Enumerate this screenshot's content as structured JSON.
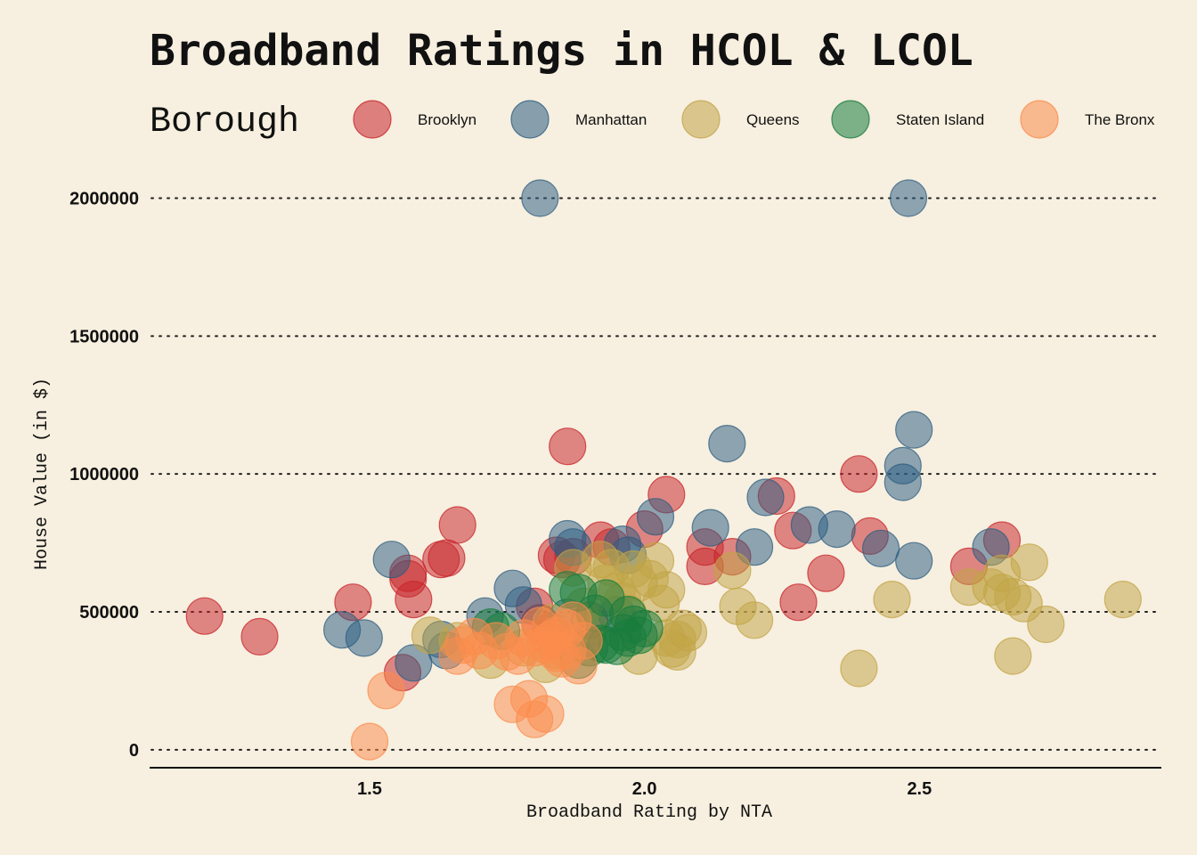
{
  "chart_data": {
    "type": "scatter",
    "title": "Broadband Ratings in HCOL & LCOL",
    "xlabel": "Broadband Rating by NTA",
    "ylabel": "House Value (in $)",
    "legend_title": "Borough",
    "legend_position": "top",
    "grid": "horizontal dotted",
    "xlim": [
      1.1,
      2.94
    ],
    "ylim": [
      -65000,
      2050000
    ],
    "x_ticks": [
      1.5,
      2.0,
      2.5
    ],
    "x_tick_labels": [
      "1.5",
      "2.0",
      "2.5"
    ],
    "y_ticks": [
      0,
      500000,
      1000000,
      1500000,
      2000000
    ],
    "y_tick_labels": [
      "0",
      "500000",
      "1000000",
      "1500000",
      "2000000"
    ],
    "series": [
      {
        "name": "Brooklyn",
        "color": "#c8242b",
        "points": [
          [
            1.2,
            485000
          ],
          [
            1.3,
            410000
          ],
          [
            1.47,
            535000
          ],
          [
            1.56,
            280000
          ],
          [
            1.57,
            640000
          ],
          [
            1.57,
            620000
          ],
          [
            1.58,
            545000
          ],
          [
            1.63,
            690000
          ],
          [
            1.64,
            695000
          ],
          [
            1.66,
            815000
          ],
          [
            1.8,
            520000
          ],
          [
            1.81,
            460000
          ],
          [
            1.84,
            705000
          ],
          [
            1.85,
            690000
          ],
          [
            1.86,
            1100000
          ],
          [
            1.87,
            700000
          ],
          [
            1.92,
            760000
          ],
          [
            1.94,
            735000
          ],
          [
            2.0,
            800000
          ],
          [
            2.04,
            925000
          ],
          [
            2.11,
            735000
          ],
          [
            2.11,
            665000
          ],
          [
            2.16,
            700000
          ],
          [
            2.24,
            920000
          ],
          [
            2.27,
            795000
          ],
          [
            2.28,
            535000
          ],
          [
            2.33,
            640000
          ],
          [
            2.39,
            1000000
          ],
          [
            2.41,
            775000
          ],
          [
            2.59,
            665000
          ],
          [
            2.65,
            760000
          ],
          [
            1.83,
            430000
          ],
          [
            1.9,
            470000
          ]
        ]
      },
      {
        "name": "Manhattan",
        "color": "#2c5d82",
        "points": [
          [
            1.45,
            435000
          ],
          [
            1.49,
            405000
          ],
          [
            1.54,
            690000
          ],
          [
            1.58,
            315000
          ],
          [
            1.63,
            400000
          ],
          [
            1.64,
            360000
          ],
          [
            1.71,
            485000
          ],
          [
            1.76,
            585000
          ],
          [
            1.78,
            525000
          ],
          [
            1.81,
            2000000
          ],
          [
            1.86,
            765000
          ],
          [
            1.87,
            735000
          ],
          [
            1.96,
            745000
          ],
          [
            1.97,
            705000
          ],
          [
            2.02,
            845000
          ],
          [
            2.12,
            805000
          ],
          [
            2.15,
            1110000
          ],
          [
            2.2,
            735000
          ],
          [
            2.22,
            915000
          ],
          [
            2.3,
            815000
          ],
          [
            2.35,
            800000
          ],
          [
            2.43,
            730000
          ],
          [
            2.47,
            1030000
          ],
          [
            2.47,
            970000
          ],
          [
            2.48,
            2000000
          ],
          [
            2.49,
            1160000
          ],
          [
            2.49,
            685000
          ],
          [
            2.63,
            735000
          ],
          [
            1.86,
            480000
          ],
          [
            1.95,
            490000
          ]
        ]
      },
      {
        "name": "Queens",
        "color": "#c2a447",
        "points": [
          [
            1.61,
            415000
          ],
          [
            1.66,
            395000
          ],
          [
            1.72,
            325000
          ],
          [
            1.78,
            370000
          ],
          [
            1.82,
            310000
          ],
          [
            1.84,
            360000
          ],
          [
            1.87,
            660000
          ],
          [
            1.89,
            520000
          ],
          [
            1.9,
            440000
          ],
          [
            1.92,
            690000
          ],
          [
            1.93,
            605000
          ],
          [
            1.94,
            660000
          ],
          [
            1.95,
            575000
          ],
          [
            1.96,
            540000
          ],
          [
            1.97,
            495000
          ],
          [
            1.98,
            655000
          ],
          [
            1.99,
            605000
          ],
          [
            2.01,
            620000
          ],
          [
            2.02,
            685000
          ],
          [
            2.04,
            580000
          ],
          [
            2.04,
            405000
          ],
          [
            2.05,
            365000
          ],
          [
            2.06,
            400000
          ],
          [
            2.07,
            440000
          ],
          [
            2.08,
            425000
          ],
          [
            2.16,
            650000
          ],
          [
            2.17,
            520000
          ],
          [
            2.2,
            470000
          ],
          [
            2.39,
            295000
          ],
          [
            2.45,
            545000
          ],
          [
            2.59,
            590000
          ],
          [
            2.63,
            590000
          ],
          [
            2.65,
            570000
          ],
          [
            2.65,
            640000
          ],
          [
            2.67,
            555000
          ],
          [
            2.67,
            340000
          ],
          [
            2.69,
            530000
          ],
          [
            2.7,
            680000
          ],
          [
            2.73,
            455000
          ],
          [
            2.87,
            545000
          ],
          [
            2.03,
            530000
          ],
          [
            1.99,
            340000
          ],
          [
            2.06,
            355000
          ],
          [
            1.83,
            460000
          ]
        ]
      },
      {
        "name": "Staten Island",
        "color": "#187c3e",
        "points": [
          [
            1.72,
            445000
          ],
          [
            1.74,
            430000
          ],
          [
            1.86,
            580000
          ],
          [
            1.88,
            570000
          ],
          [
            1.88,
            325000
          ],
          [
            1.9,
            370000
          ],
          [
            1.91,
            495000
          ],
          [
            1.93,
            550000
          ],
          [
            1.93,
            380000
          ],
          [
            1.95,
            375000
          ],
          [
            1.96,
            425000
          ],
          [
            1.97,
            490000
          ],
          [
            1.98,
            455000
          ],
          [
            1.99,
            415000
          ],
          [
            2.0,
            440000
          ],
          [
            1.92,
            385000
          ],
          [
            1.97,
            405000
          ]
        ]
      },
      {
        "name": "The Bronx",
        "color": "#fb8c4c",
        "points": [
          [
            1.5,
            30000
          ],
          [
            1.53,
            215000
          ],
          [
            1.66,
            340000
          ],
          [
            1.67,
            380000
          ],
          [
            1.69,
            410000
          ],
          [
            1.7,
            360000
          ],
          [
            1.75,
            355000
          ],
          [
            1.76,
            165000
          ],
          [
            1.77,
            340000
          ],
          [
            1.78,
            405000
          ],
          [
            1.79,
            185000
          ],
          [
            1.8,
            110000
          ],
          [
            1.81,
            450000
          ],
          [
            1.82,
            130000
          ],
          [
            1.82,
            380000
          ],
          [
            1.83,
            400000
          ],
          [
            1.84,
            415000
          ],
          [
            1.85,
            330000
          ],
          [
            1.86,
            360000
          ],
          [
            1.86,
            440000
          ],
          [
            1.87,
            470000
          ],
          [
            1.88,
            305000
          ],
          [
            1.89,
            395000
          ],
          [
            1.8,
            370000
          ],
          [
            1.84,
            350000
          ],
          [
            1.73,
            395000
          ]
        ]
      }
    ]
  }
}
